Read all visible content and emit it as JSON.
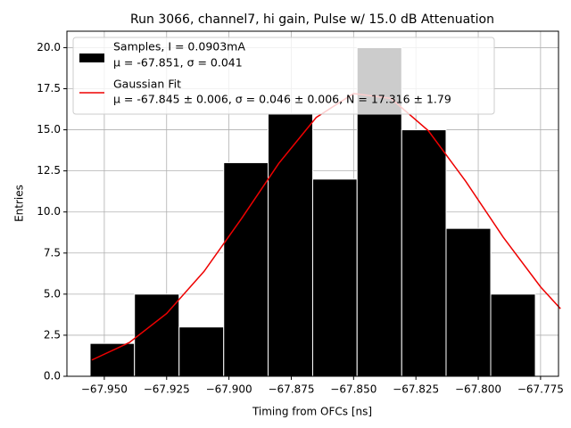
{
  "chart_data": {
    "type": "histogram",
    "title": "Run 3066, channel7, hi gain, Pulse w/ 15.0 dB Attenuation",
    "xlabel": "Timing from OFCs [ns]",
    "ylabel": "Entries",
    "bins": [
      -67.9557,
      -67.9379,
      -67.92,
      -67.9021,
      -67.8843,
      -67.8664,
      -67.8486,
      -67.8307,
      -67.8129,
      -67.795,
      -67.7771
    ],
    "values": [
      2,
      5,
      3,
      13,
      16,
      12,
      20,
      15,
      9,
      5
    ],
    "color": "#000000",
    "edgecolor": "#ffffff",
    "name": "Samples, I = 0.0903mA",
    "name_detail": "μ = -67.851, σ = 0.041",
    "fit": {
      "type": "line",
      "name": "Gaussian Fit",
      "name_detail": "μ = -67.845 ± 0.006, σ = 0.046 ± 0.006, N = 17.316 ± 1.79",
      "color": "#ee0000",
      "x": [
        -67.955,
        -67.94,
        -67.925,
        -67.91,
        -67.895,
        -67.88,
        -67.865,
        -67.85,
        -67.835,
        -67.82,
        -67.805,
        -67.79,
        -67.775,
        -67.767
      ],
      "values": [
        0.99,
        2.05,
        3.82,
        6.38,
        9.59,
        12.96,
        15.75,
        17.21,
        16.91,
        14.94,
        11.86,
        8.47,
        5.44,
        4.11
      ]
    },
    "xlim": [
      -67.965,
      -67.7678
    ],
    "ylim": [
      0,
      21
    ],
    "xticks": [
      {
        "value": -67.95,
        "label": "−67.950"
      },
      {
        "value": -67.925,
        "label": "−67.925"
      },
      {
        "value": -67.9,
        "label": "−67.900"
      },
      {
        "value": -67.875,
        "label": "−67.875"
      },
      {
        "value": -67.85,
        "label": "−67.850"
      },
      {
        "value": -67.825,
        "label": "−67.825"
      },
      {
        "value": -67.8,
        "label": "−67.800"
      },
      {
        "value": -67.775,
        "label": "−67.775"
      }
    ],
    "yticks": [
      {
        "value": 0,
        "label": "0.0"
      },
      2.5,
      {
        "value": 5,
        "label": "5.0"
      },
      7.5,
      {
        "value": 10,
        "label": "10.0"
      },
      12.5,
      {
        "value": 15,
        "label": "15.0"
      },
      17.5,
      {
        "value": 20,
        "label": "20.0"
      }
    ],
    "grid": true,
    "legend": "upper left"
  }
}
